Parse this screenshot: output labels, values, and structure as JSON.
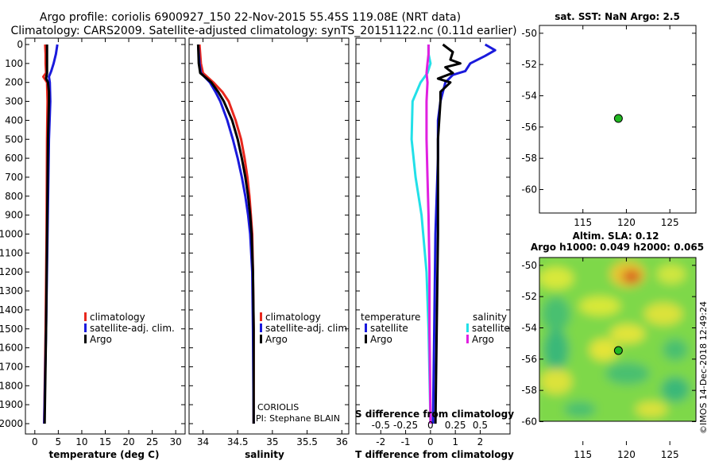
{
  "title_line1": "Argo profile: coriolis 6900927_150 22-Nov-2015 55.45S 119.08E (NRT data)",
  "title_line2": "Climatology: CARS2009. Satellite-adjusted climatology: synTS_20151122.nc (0.11d earlier)",
  "colors": {
    "climatology": "#e8281e",
    "satellite": "#1a1adc",
    "argo": "#000000",
    "sat_salinity": "#22e0e8",
    "argo_salinity": "#e020e0",
    "marker": "#22b822"
  },
  "depth_axis": {
    "ticks": [
      "0",
      "100",
      "200",
      "300",
      "400",
      "500",
      "600",
      "700",
      "800",
      "900",
      "1000",
      "1100",
      "1200",
      "1300",
      "1400",
      "1500",
      "1600",
      "1700",
      "1800",
      "1900",
      "2000"
    ]
  },
  "chart_data": [
    {
      "type": "line",
      "id": "temperature",
      "xlabel": "temperature (deg C)",
      "ylabel": "depth",
      "xlim": [
        -2,
        32
      ],
      "ylim": [
        2070,
        0
      ],
      "xticks": [
        "0",
        "5",
        "10",
        "15",
        "20",
        "25",
        "30"
      ],
      "legend": [
        "climatology",
        "satellite-adj. clim.",
        "Argo"
      ],
      "series": [
        {
          "name": "climatology",
          "depth": [
            0,
            50,
            100,
            150,
            170,
            200,
            300,
            500,
            1000,
            1500,
            2000
          ],
          "values": [
            2.2,
            2.3,
            2.3,
            2.4,
            1.8,
            2.6,
            2.7,
            2.6,
            2.5,
            2.3,
            2.0
          ]
        },
        {
          "name": "satellite-adj. clim.",
          "depth": [
            0,
            50,
            100,
            140,
            170,
            200,
            300,
            500,
            1000,
            1500,
            2000
          ],
          "values": [
            4.8,
            4.5,
            4.0,
            3.5,
            3.0,
            3.2,
            3.3,
            3.0,
            2.7,
            2.4,
            2.0
          ]
        },
        {
          "name": "Argo",
          "depth": [
            0,
            100,
            150,
            180,
            200,
            250,
            300,
            500,
            1000,
            1500,
            2000
          ],
          "values": [
            2.6,
            2.6,
            2.6,
            2.4,
            2.8,
            3.0,
            3.0,
            2.8,
            2.6,
            2.4,
            2.1
          ]
        }
      ]
    },
    {
      "type": "line",
      "id": "salinity",
      "xlabel": "salinity",
      "ylabel": "depth",
      "xlim": [
        33.8,
        36.1
      ],
      "ylim": [
        2070,
        0
      ],
      "xticks": [
        "34",
        "34.5",
        "35",
        "35.5",
        "36"
      ],
      "legend": [
        "climatology",
        "satellite-adj. clim.",
        "Argo"
      ],
      "annotation": [
        "CORIOLIS",
        "PI: Stephane BLAIN"
      ],
      "series": [
        {
          "name": "climatology",
          "depth": [
            0,
            100,
            150,
            200,
            250,
            300,
            400,
            500,
            600,
            700,
            800,
            900,
            1000,
            1200,
            1500,
            2000
          ],
          "values": [
            33.95,
            33.97,
            34.0,
            34.15,
            34.28,
            34.37,
            34.47,
            34.55,
            34.6,
            34.64,
            34.67,
            34.69,
            34.71,
            34.72,
            34.73,
            34.73
          ]
        },
        {
          "name": "satellite-adj. clim.",
          "depth": [
            0,
            100,
            150,
            200,
            250,
            300,
            400,
            500,
            600,
            700,
            800,
            900,
            1000,
            1200,
            1500,
            2000
          ],
          "values": [
            33.93,
            33.95,
            33.97,
            34.1,
            34.18,
            34.25,
            34.35,
            34.43,
            34.5,
            34.56,
            34.61,
            34.65,
            34.68,
            34.71,
            34.72,
            34.73
          ]
        },
        {
          "name": "Argo",
          "depth": [
            0,
            100,
            150,
            200,
            250,
            300,
            400,
            500,
            600,
            700,
            800,
            900,
            1000,
            1200,
            1500,
            2000
          ],
          "values": [
            33.93,
            33.94,
            33.96,
            34.12,
            34.22,
            34.3,
            34.42,
            34.5,
            34.56,
            34.61,
            34.65,
            34.68,
            34.7,
            34.72,
            34.73,
            34.73
          ]
        }
      ]
    },
    {
      "type": "line",
      "id": "difference",
      "xlabel": "T difference from climatology",
      "xlabel_top": "S difference from climatology",
      "xlim": [
        -3,
        3.2
      ],
      "ylim": [
        2070,
        0
      ],
      "xticks": [
        "-2",
        "-1",
        "0",
        "1",
        "2"
      ],
      "xticks_top": [
        "-0.5",
        "-0.25",
        "0",
        "0.25",
        "0.5"
      ],
      "legend_temperature_title": "temperature",
      "legend_salinity_title": "salinity",
      "legend_temperature": [
        "satellite",
        "Argo"
      ],
      "legend_salinity": [
        "satellite",
        "Argo"
      ],
      "series": [
        {
          "name": "T satellite",
          "depth": [
            0,
            30,
            60,
            100,
            140,
            160,
            200,
            300,
            400,
            600,
            1000,
            1500,
            2000
          ],
          "values": [
            2.2,
            2.6,
            2.2,
            1.6,
            1.4,
            0.9,
            0.6,
            0.4,
            0.3,
            0.3,
            0.2,
            0.15,
            0.1
          ]
        },
        {
          "name": "T Argo",
          "depth": [
            0,
            40,
            80,
            100,
            120,
            150,
            180,
            200,
            250,
            300,
            500,
            1000,
            1500,
            2000
          ],
          "values": [
            0.5,
            0.9,
            0.8,
            1.2,
            0.6,
            0.9,
            0.3,
            0.8,
            0.4,
            0.4,
            0.3,
            0.3,
            0.25,
            0.2
          ]
        },
        {
          "name": "S satellite",
          "depth": [
            0,
            50,
            100,
            150,
            200,
            300,
            500,
            700,
            900,
            1200,
            1500,
            2000
          ],
          "values": [
            -0.02,
            -0.02,
            0.0,
            -0.03,
            -0.1,
            -0.18,
            -0.19,
            -0.15,
            -0.09,
            -0.04,
            -0.02,
            0.0
          ]
        },
        {
          "name": "S Argo",
          "depth": [
            0,
            50,
            100,
            150,
            200,
            300,
            500,
            700,
            900,
            1200,
            1500,
            2000
          ],
          "values": [
            -0.02,
            -0.02,
            -0.03,
            -0.04,
            -0.03,
            -0.04,
            -0.04,
            -0.03,
            -0.02,
            -0.01,
            -0.01,
            0.0
          ]
        }
      ]
    },
    {
      "type": "scatter",
      "id": "sst-map",
      "title": "sat. SST: NaN Argo: 2.5",
      "xlim": [
        110,
        128
      ],
      "ylim": [
        -61.5,
        -49.5
      ],
      "xticks": [
        "115",
        "120",
        "125"
      ],
      "yticks": [
        "-50",
        "-52",
        "-54",
        "-56",
        "-58",
        "-60"
      ],
      "points": [
        {
          "x": 119.08,
          "y": -55.45
        }
      ]
    },
    {
      "type": "heatmap",
      "id": "sla-map",
      "title_line1": "Altim. SLA: 0.12",
      "title_line2": "Argo h1000: 0.049 h2000: 0.065",
      "xlim": [
        110,
        128
      ],
      "ylim": [
        -61.5,
        -49.5
      ],
      "xticks": [
        "115",
        "120",
        "125"
      ],
      "yticks": [
        "-50",
        "-52",
        "-54",
        "-56",
        "-58",
        "-60"
      ],
      "points": [
        {
          "x": 119.08,
          "y": -55.45
        }
      ]
    }
  ],
  "credit": "©IMOS 14-Dec-2018 12:49:24"
}
